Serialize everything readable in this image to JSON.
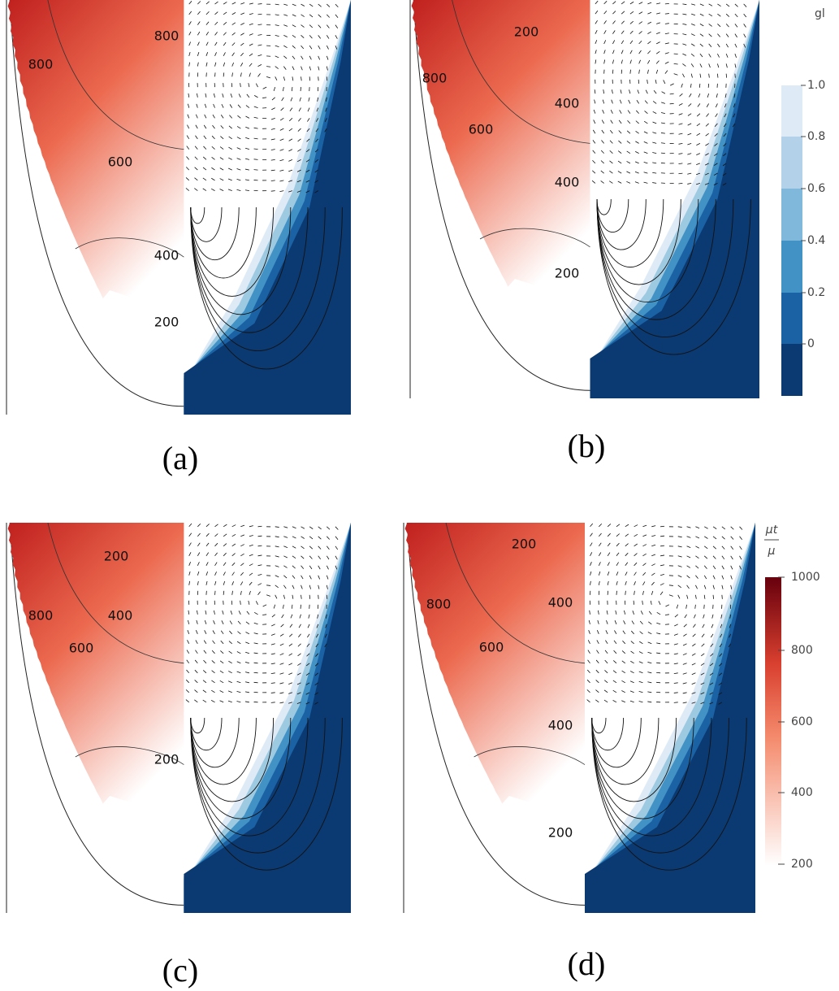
{
  "panels": [
    {
      "label": "(a)",
      "contour_labels": [
        "800",
        "800",
        "600",
        "400",
        "200"
      ]
    },
    {
      "label": "(b)",
      "contour_labels": [
        "200",
        "800",
        "400",
        "600",
        "400",
        "200"
      ]
    },
    {
      "label": "(c)",
      "contour_labels": [
        "200",
        "400",
        "800",
        "600",
        "200"
      ]
    },
    {
      "label": "(d)",
      "contour_labels": [
        "200",
        "400",
        "800",
        "600",
        "400",
        "200"
      ]
    }
  ],
  "colorbars": [
    {
      "title": "gl",
      "ticks": [
        "1.0",
        "0.8",
        "0.6",
        "0.4",
        "0.2",
        "0"
      ]
    },
    {
      "title_numerator": "μt",
      "title_denominator": "μ",
      "ticks": [
        "1000",
        "800",
        "600",
        "400",
        "200"
      ]
    }
  ]
}
